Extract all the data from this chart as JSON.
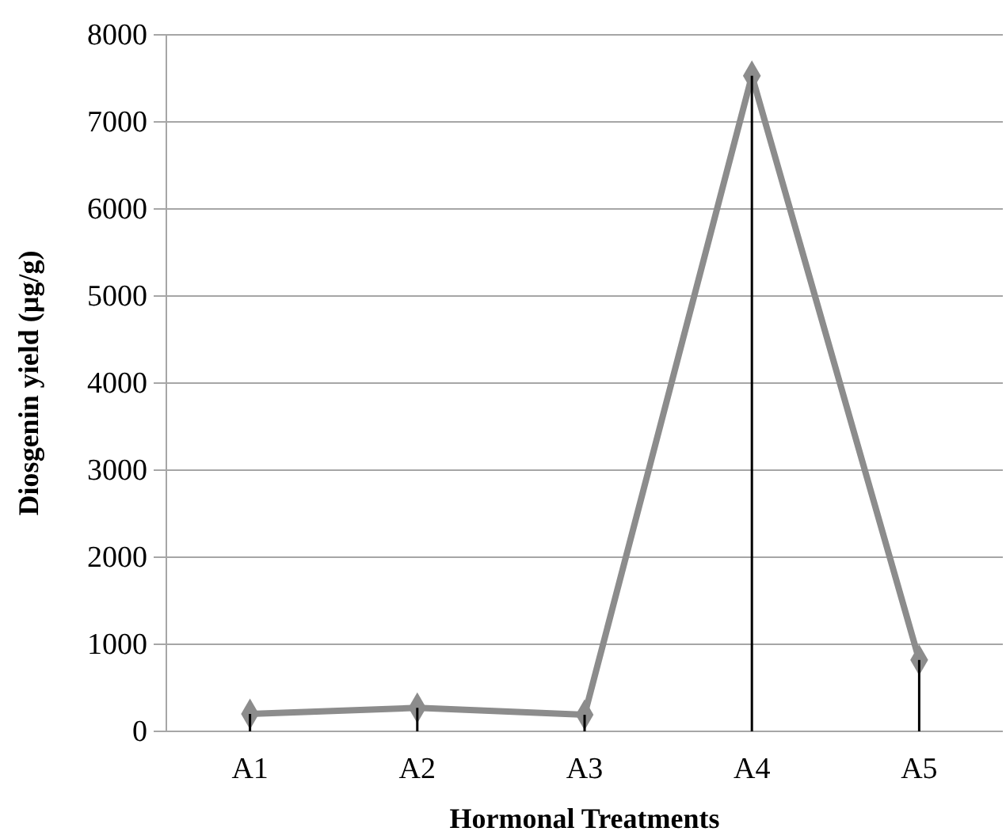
{
  "chart_data": {
    "type": "line",
    "xlabel": "Hormonal Treatments",
    "ylabel": "Diosgenin yield (µg/g)",
    "categories": [
      "A1",
      "A2",
      "A3",
      "A4",
      "A5"
    ],
    "series": [
      {
        "type": "bar",
        "color": "#000000",
        "values": [
          200,
          270,
          190,
          7530,
          820
        ]
      },
      {
        "color": "#8c8c8c",
        "values": [
          200,
          270,
          190,
          7530,
          820
        ],
        "marker": "diamond"
      }
    ],
    "ylim": [
      0,
      8000
    ],
    "yticks": [
      0,
      1000,
      2000,
      3000,
      4000,
      5000,
      6000,
      7000,
      8000
    ],
    "grid": "y"
  }
}
